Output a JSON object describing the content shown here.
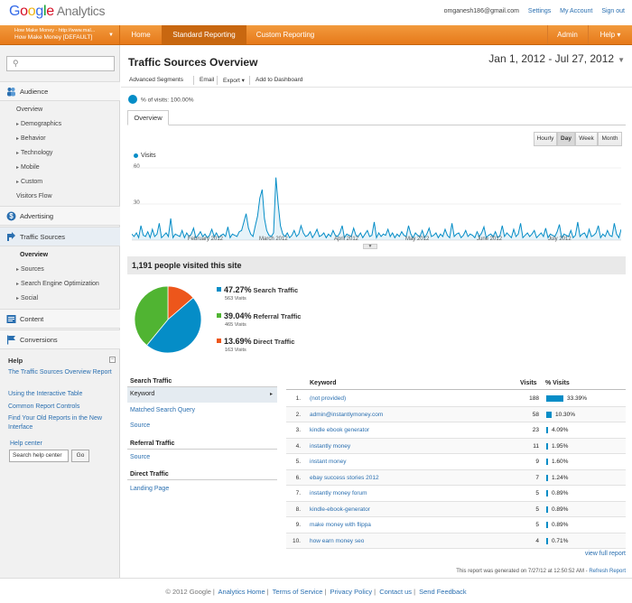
{
  "header": {
    "logo_google": "Google",
    "logo_product": "Analytics",
    "user_email": "omganesh186@gmail.com",
    "settings": "Settings",
    "my_account": "My Account",
    "sign_out": "Sign out"
  },
  "nav": {
    "account_line1": "How Make Money - http://www.mal...",
    "account_line2": "How Make Money [DEFAULT]",
    "home": "Home",
    "standard_reporting": "Standard Reporting",
    "custom_reporting": "Custom Reporting",
    "admin": "Admin",
    "help": "Help"
  },
  "sidebar": {
    "sections": {
      "audience": "Audience",
      "advertising": "Advertising",
      "traffic_sources": "Traffic Sources",
      "content": "Content",
      "conversions": "Conversions"
    },
    "audience_items": [
      "Overview",
      "Demographics",
      "Behavior",
      "Technology",
      "Mobile",
      "Custom",
      "Visitors Flow"
    ],
    "traffic_items": [
      "Overview",
      "Sources",
      "Search Engine Optimization",
      "Social"
    ],
    "help": {
      "title": "Help",
      "links": [
        "The Traffic Sources Overview Report",
        "Using the Interactive Table",
        "Common Report Controls",
        "Find Your Old Reports in the New Interface"
      ],
      "help_center": "Help center",
      "search_value": "Search help center",
      "go": "Go"
    }
  },
  "main": {
    "title": "Traffic Sources Overview",
    "date_range": "Jan 1, 2012 - Jul 27, 2012",
    "toolbar": {
      "advanced_segments": "Advanced Segments",
      "email": "Email",
      "export": "Export",
      "add_to_dashboard": "Add to Dashboard"
    },
    "visits_pct": "% of visits: 100.00%",
    "tab": "Overview",
    "granularity": [
      "Hourly",
      "Day",
      "Week",
      "Month"
    ],
    "people_visited": "1,191 people visited this site",
    "pie_legend": [
      {
        "pct": "47.27%",
        "name": "Search Traffic",
        "count": "563 Visits",
        "color": "#058dc7"
      },
      {
        "pct": "39.04%",
        "name": "Referral Traffic",
        "count": "465 Visits",
        "color": "#50b432"
      },
      {
        "pct": "13.69%",
        "name": "Direct Traffic",
        "count": "163 Visits",
        "color": "#ed561b"
      }
    ],
    "left_list": {
      "search_traffic_head": "Search Traffic",
      "search_items": [
        "Keyword",
        "Matched Search Query",
        "Source"
      ],
      "referral_head": "Referral Traffic",
      "referral_items": [
        "Source"
      ],
      "direct_head": "Direct Traffic",
      "direct_items": [
        "Landing Page"
      ]
    },
    "keyword_table": {
      "headers": {
        "keyword": "Keyword",
        "visits": "Visits",
        "pct": "% Visits"
      },
      "rows": [
        {
          "n": "1.",
          "keyword": "(not provided)",
          "visits": "188",
          "pct": "33.39%",
          "frac": 0.3339
        },
        {
          "n": "2.",
          "keyword": "admin@instantlymoney.com",
          "visits": "58",
          "pct": "10.30%",
          "frac": 0.103
        },
        {
          "n": "3.",
          "keyword": "kindle ebook generator",
          "visits": "23",
          "pct": "4.09%",
          "frac": 0.0409
        },
        {
          "n": "4.",
          "keyword": "instantly money",
          "visits": "11",
          "pct": "1.95%",
          "frac": 0.0195
        },
        {
          "n": "5.",
          "keyword": "instant money",
          "visits": "9",
          "pct": "1.60%",
          "frac": 0.016
        },
        {
          "n": "6.",
          "keyword": "ebay success stories 2012",
          "visits": "7",
          "pct": "1.24%",
          "frac": 0.0124
        },
        {
          "n": "7.",
          "keyword": "instantly money forum",
          "visits": "5",
          "pct": "0.89%",
          "frac": 0.0089
        },
        {
          "n": "8.",
          "keyword": "kindle-ebook-generator",
          "visits": "5",
          "pct": "0.89%",
          "frac": 0.0089
        },
        {
          "n": "9.",
          "keyword": "make money with flippa",
          "visits": "5",
          "pct": "0.89%",
          "frac": 0.0089
        },
        {
          "n": "10.",
          "keyword": "how earn money seo",
          "visits": "4",
          "pct": "0.71%",
          "frac": 0.0071
        }
      ]
    },
    "view_full_report": "view full report",
    "generated_note": "This report was generated on 7/27/12 at 12:50:52 AM - ",
    "refresh": "Refresh Report"
  },
  "chart_data": {
    "type": "line",
    "legend": "Visits",
    "y_ticks": [
      "60",
      "30"
    ],
    "ylim": [
      0,
      60
    ],
    "x_ticks": [
      "February 2012",
      "March 2012",
      "April 2012",
      "May 2012",
      "June 2012",
      "July 2012"
    ],
    "color": "#058dc7",
    "values": [
      5,
      3,
      6,
      2,
      12,
      4,
      3,
      7,
      2,
      9,
      3,
      5,
      14,
      2,
      4,
      6,
      3,
      18,
      2,
      5,
      4,
      3,
      8,
      2,
      6,
      3,
      5,
      10,
      2,
      4,
      7,
      3,
      5,
      2,
      4,
      9,
      3,
      6,
      2,
      4,
      5,
      3,
      11,
      2,
      5,
      4,
      3,
      7,
      8,
      15,
      22,
      10,
      5,
      3,
      12,
      20,
      35,
      42,
      18,
      8,
      4,
      3,
      6,
      52,
      30,
      12,
      5,
      3,
      6,
      2,
      4,
      8,
      3,
      5,
      12,
      6,
      3,
      4,
      7,
      2,
      5,
      9,
      3,
      4,
      6,
      2,
      5,
      3,
      8,
      4,
      3,
      6,
      12,
      2,
      5,
      4,
      3,
      10,
      4,
      3,
      6,
      2,
      5,
      8,
      3,
      4,
      15,
      2,
      6,
      3,
      5,
      4,
      9,
      3,
      6,
      2,
      5,
      3,
      7,
      4,
      3,
      12,
      5,
      2,
      6,
      4,
      3,
      8,
      2,
      5,
      10,
      3,
      4,
      6,
      2,
      5,
      3,
      9,
      4,
      2,
      14,
      3,
      5,
      6,
      2,
      4,
      8,
      3,
      5,
      4,
      2,
      7,
      3,
      6,
      11,
      2,
      4,
      5,
      3,
      7,
      2,
      4,
      12,
      3,
      6,
      4,
      2,
      9,
      3,
      5,
      14,
      2,
      4,
      6,
      3,
      5,
      8,
      2,
      4,
      6,
      3,
      10,
      2,
      5,
      4,
      3,
      7,
      13,
      2,
      5,
      4,
      3,
      8,
      2,
      4,
      15,
      3,
      5,
      6,
      2,
      9,
      3,
      4,
      6,
      12,
      2,
      5,
      3,
      8,
      4,
      3,
      14,
      5,
      2,
      9
    ]
  }
}
